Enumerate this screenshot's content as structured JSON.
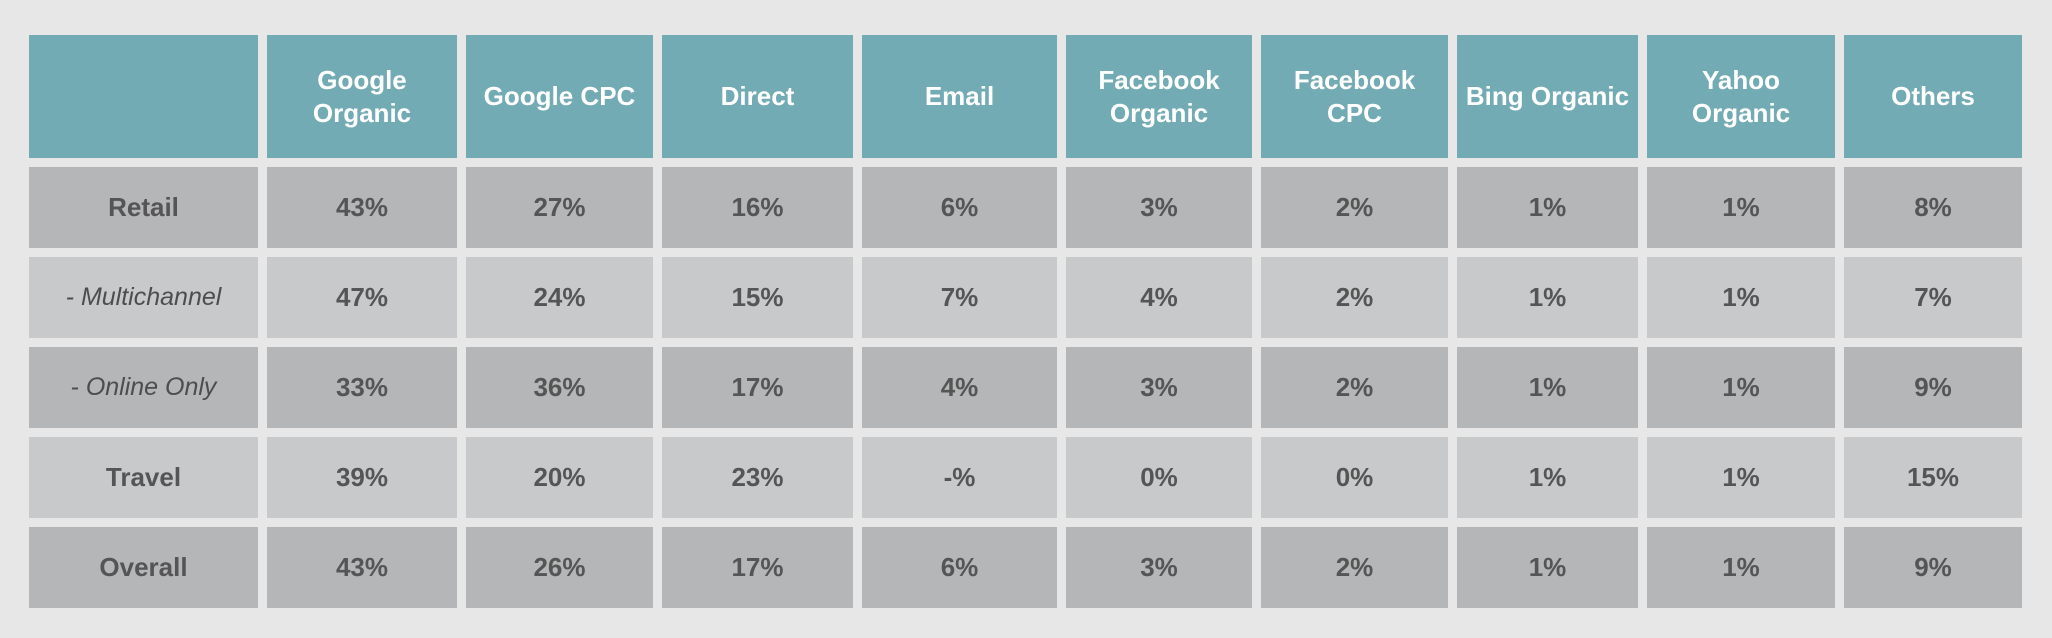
{
  "table": {
    "columns": [
      "Google Organic",
      "Google CPC",
      "Direct",
      "Email",
      "Facebook Organic",
      "Facebook CPC",
      "Bing Organic",
      "Yahoo Organic",
      "Others"
    ],
    "rows": [
      {
        "label": "Retail",
        "cells": [
          "43%",
          "27%",
          "16%",
          "6%",
          "3%",
          "2%",
          "1%",
          "1%",
          "8%"
        ]
      },
      {
        "label": "- Multichannel",
        "cells": [
          "47%",
          "24%",
          "15%",
          "7%",
          "4%",
          "2%",
          "1%",
          "1%",
          "7%"
        ]
      },
      {
        "label": "- Online Only",
        "cells": [
          "33%",
          "36%",
          "17%",
          "4%",
          "3%",
          "2%",
          "1%",
          "1%",
          "9%"
        ]
      },
      {
        "label": "Travel",
        "cells": [
          "39%",
          "20%",
          "23%",
          "-%",
          "0%",
          "0%",
          "1%",
          "1%",
          "15%"
        ]
      },
      {
        "label": "Overall",
        "cells": [
          "43%",
          "26%",
          "17%",
          "6%",
          "3%",
          "2%",
          "1%",
          "1%",
          "9%"
        ]
      }
    ]
  }
}
